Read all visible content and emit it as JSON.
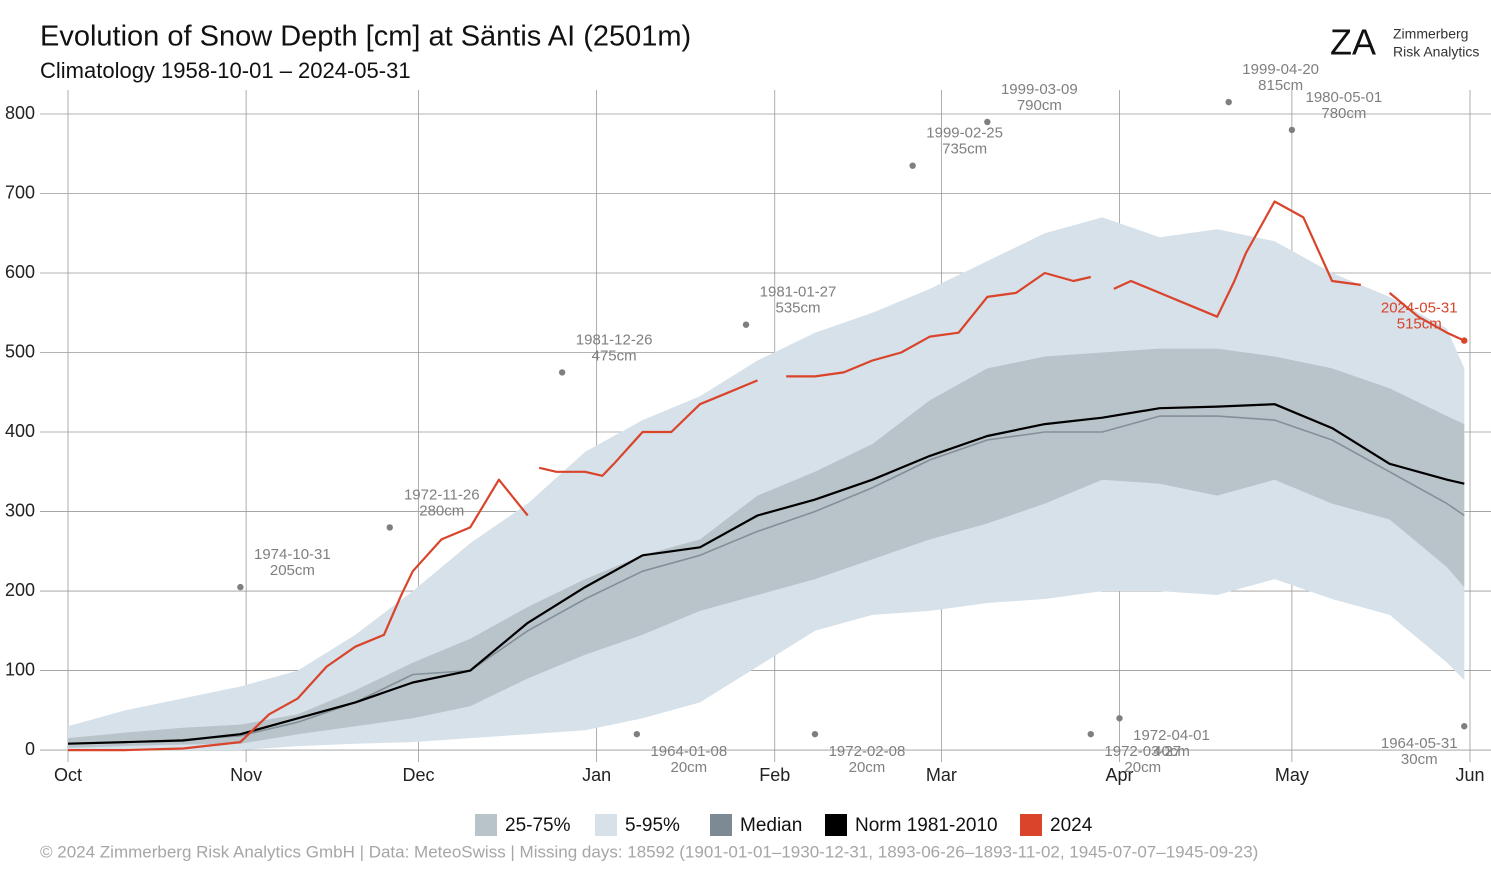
{
  "chart_data": {
    "type": "band-line",
    "title": "Evolution of Snow Depth [cm] at Säntis  AI (2501m)",
    "subtitle": "Climatology 1958-10-01 – 2024-05-31",
    "logo": {
      "mark": "ZA",
      "line1": "Zimmerberg",
      "line2": "Risk Analytics"
    },
    "footer": "©  2024 Zimmerberg Risk Analytics GmbH | Data: MeteoSwiss | Missing days: 18592 (1901-01-01–1930-12-31, 1893-06-26–1893-11-02, 1945-07-07–1945-09-23)",
    "grid": true,
    "xlim": [
      0,
      244
    ],
    "xticks": [
      {
        "value": 0,
        "label": "Oct"
      },
      {
        "value": 31,
        "label": "Nov"
      },
      {
        "value": 61,
        "label": "Dec"
      },
      {
        "value": 92,
        "label": "Jan"
      },
      {
        "value": 123,
        "label": "Feb"
      },
      {
        "value": 152,
        "label": "Mar"
      },
      {
        "value": 183,
        "label": "Apr"
      },
      {
        "value": 213,
        "label": "May"
      },
      {
        "value": 244,
        "label": "Jun"
      }
    ],
    "ylim": [
      -15,
      800
    ],
    "yticks": [
      0,
      100,
      200,
      300,
      400,
      500,
      600,
      700,
      800
    ],
    "x": [
      0,
      10,
      20,
      30,
      40,
      50,
      60,
      70,
      80,
      90,
      100,
      110,
      120,
      130,
      140,
      150,
      160,
      170,
      180,
      190,
      200,
      210,
      220,
      230,
      240,
      243
    ],
    "bands": [
      {
        "name": "25-75%",
        "color": "#b9c3ca",
        "lower": [
          3,
          5,
          7,
          8,
          20,
          30,
          40,
          55,
          90,
          120,
          145,
          175,
          195,
          215,
          240,
          265,
          285,
          310,
          340,
          335,
          320,
          340,
          310,
          290,
          230,
          205
        ],
        "upper": [
          15,
          22,
          28,
          32,
          45,
          75,
          110,
          140,
          180,
          215,
          245,
          265,
          320,
          350,
          385,
          440,
          480,
          495,
          500,
          505,
          505,
          495,
          480,
          455,
          420,
          410
        ]
      },
      {
        "name": "5-95%",
        "color": "#d6e1e9",
        "lower": [
          0,
          0,
          0,
          0,
          5,
          8,
          10,
          15,
          20,
          25,
          40,
          60,
          105,
          150,
          170,
          175,
          185,
          190,
          200,
          200,
          195,
          215,
          190,
          170,
          110,
          88
        ],
        "upper": [
          30,
          50,
          65,
          80,
          100,
          145,
          200,
          260,
          310,
          375,
          415,
          445,
          490,
          525,
          550,
          580,
          615,
          650,
          670,
          645,
          655,
          640,
          600,
          570,
          530,
          480
        ]
      }
    ],
    "series": [
      {
        "name": "Median",
        "color": "#858f97",
        "values": [
          8,
          10,
          13,
          18,
          35,
          60,
          95,
          100,
          150,
          190,
          225,
          245,
          275,
          300,
          330,
          365,
          390,
          400,
          400,
          420,
          420,
          415,
          390,
          350,
          310,
          295
        ]
      },
      {
        "name": "Norm 1981-2010",
        "color": "#000000",
        "values": [
          8,
          10,
          12,
          20,
          40,
          60,
          85,
          100,
          160,
          205,
          245,
          255,
          295,
          315,
          340,
          370,
          395,
          410,
          418,
          430,
          432,
          435,
          405,
          360,
          340,
          335
        ]
      },
      {
        "name": "2024",
        "color": "#d9442b",
        "x": [
          0,
          10,
          20,
          30,
          35,
          40,
          45,
          50,
          55,
          58,
          60,
          65,
          70,
          75,
          80,
          81,
          82,
          85,
          90,
          93,
          95,
          100,
          105,
          110,
          115,
          120,
          122,
          125,
          130,
          135,
          140,
          145,
          150,
          155,
          160,
          165,
          170,
          175,
          178,
          180,
          182,
          185,
          190,
          195,
          200,
          203,
          205,
          210,
          215,
          220,
          225,
          227,
          230,
          235,
          240,
          243
        ],
        "values": [
          0,
          0,
          2,
          10,
          45,
          65,
          105,
          130,
          145,
          195,
          225,
          265,
          280,
          340,
          295,
          null,
          355,
          350,
          350,
          345,
          360,
          400,
          400,
          435,
          450,
          465,
          null,
          470,
          470,
          475,
          490,
          500,
          520,
          525,
          570,
          575,
          600,
          590,
          595,
          null,
          580,
          590,
          575,
          560,
          545,
          590,
          625,
          690,
          670,
          590,
          585,
          null,
          575,
          545,
          525,
          515
        ]
      }
    ],
    "annotations": [
      {
        "x": 30,
        "value": 205,
        "date": "1974-10-31",
        "label": "205cm",
        "color": "#7f7f7f"
      },
      {
        "x": 56,
        "value": 280,
        "date": "1972-11-26",
        "label": "280cm",
        "color": "#7f7f7f"
      },
      {
        "x": 86,
        "value": 475,
        "date": "1981-12-26",
        "label": "475cm",
        "color": "#7f7f7f"
      },
      {
        "x": 99,
        "value": 20,
        "date": "1964-01-08",
        "label": "20cm",
        "color": "#7f7f7f"
      },
      {
        "x": 118,
        "value": 535,
        "date": "1981-01-27",
        "label": "535cm",
        "color": "#7f7f7f"
      },
      {
        "x": 130,
        "value": 20,
        "date": "1972-02-08",
        "label": "20cm",
        "color": "#7f7f7f"
      },
      {
        "x": 147,
        "value": 735,
        "date": "1999-02-25",
        "label": "735cm",
        "color": "#7f7f7f"
      },
      {
        "x": 160,
        "value": 790,
        "date": "1999-03-09",
        "label": "790cm",
        "color": "#7f7f7f"
      },
      {
        "x": 178,
        "value": 20,
        "date": "1972-03-27",
        "label": "20cm",
        "color": "#7f7f7f"
      },
      {
        "x": 183,
        "value": 40,
        "date": "1972-04-01",
        "label": "40cm",
        "color": "#7f7f7f"
      },
      {
        "x": 202,
        "value": 815,
        "date": "1999-04-20",
        "label": "815cm",
        "color": "#7f7f7f"
      },
      {
        "x": 213,
        "value": 780,
        "date": "1980-05-01",
        "label": "780cm",
        "color": "#7f7f7f"
      },
      {
        "x": 243,
        "value": 30,
        "date": "1964-05-31",
        "label": "30cm",
        "color": "#7f7f7f"
      },
      {
        "x": 243,
        "value": 515,
        "date": "2024-05-31",
        "label": "515cm",
        "color": "#d9442b"
      }
    ]
  }
}
